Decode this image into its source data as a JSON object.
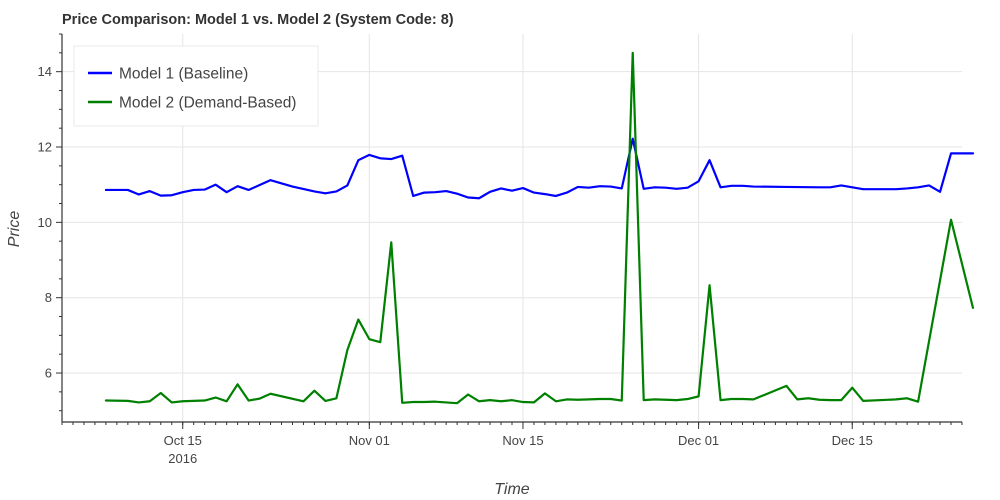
{
  "chart_data": {
    "type": "line",
    "title": "Price Comparison: Model 1 vs. Model 2 (System Code: 8)",
    "xlabel": "Time",
    "ylabel": "Price",
    "xlim": [
      "2016-10-04",
      "2016-12-25"
    ],
    "ylim": [
      4.7,
      15.0
    ],
    "grid": true,
    "legend_position": "top-left",
    "x_ticks": [
      {
        "date": "2016-10-15",
        "label": "Oct 15",
        "sublabel": "2016"
      },
      {
        "date": "2016-11-01",
        "label": "Nov 01",
        "sublabel": ""
      },
      {
        "date": "2016-11-15",
        "label": "Nov 15",
        "sublabel": ""
      },
      {
        "date": "2016-12-01",
        "label": "Dec 01",
        "sublabel": ""
      },
      {
        "date": "2016-12-15",
        "label": "Dec 15",
        "sublabel": ""
      }
    ],
    "y_ticks": [
      6,
      8,
      10,
      12,
      14
    ],
    "series": [
      {
        "name": "Model 1 (Baseline)",
        "color": "#0000ff",
        "points": [
          [
            "2016-10-08 00:00",
            10.86
          ],
          [
            "2016-10-10 00:00",
            10.86
          ],
          [
            "2016-10-11 00:00",
            10.74
          ],
          [
            "2016-10-12 00:00",
            10.83
          ],
          [
            "2016-10-13 00:00",
            10.71
          ],
          [
            "2016-10-14 00:00",
            10.72
          ],
          [
            "2016-10-15 00:00",
            10.8
          ],
          [
            "2016-10-16 00:00",
            10.86
          ],
          [
            "2016-10-17 00:00",
            10.87
          ],
          [
            "2016-10-18 00:00",
            11.0
          ],
          [
            "2016-10-19 00:00",
            10.8
          ],
          [
            "2016-10-20 00:00",
            10.96
          ],
          [
            "2016-10-21 00:00",
            10.86
          ],
          [
            "2016-10-23 00:00",
            11.12
          ],
          [
            "2016-10-25 00:00",
            10.95
          ],
          [
            "2016-10-27 00:00",
            10.82
          ],
          [
            "2016-10-28 00:00",
            10.77
          ],
          [
            "2016-10-29 00:00",
            10.82
          ],
          [
            "2016-10-30 00:00",
            10.98
          ],
          [
            "2016-10-31 00:00",
            11.65
          ],
          [
            "2016-11-01 00:00",
            11.79
          ],
          [
            "2016-11-02 00:00",
            11.7
          ],
          [
            "2016-11-03 00:00",
            11.68
          ],
          [
            "2016-11-04 00:00",
            11.77
          ],
          [
            "2016-11-05 00:00",
            10.7
          ],
          [
            "2016-11-06 00:00",
            10.79
          ],
          [
            "2016-11-07 00:00",
            10.8
          ],
          [
            "2016-11-08 00:00",
            10.83
          ],
          [
            "2016-11-09 00:00",
            10.76
          ],
          [
            "2016-11-10 00:00",
            10.66
          ],
          [
            "2016-11-11 00:00",
            10.64
          ],
          [
            "2016-11-12 00:00",
            10.81
          ],
          [
            "2016-11-13 00:00",
            10.9
          ],
          [
            "2016-11-14 00:00",
            10.84
          ],
          [
            "2016-11-15 00:00",
            10.91
          ],
          [
            "2016-11-16 00:00",
            10.79
          ],
          [
            "2016-11-17 00:00",
            10.75
          ],
          [
            "2016-11-18 00:00",
            10.7
          ],
          [
            "2016-11-19 00:00",
            10.79
          ],
          [
            "2016-11-20 00:00",
            10.94
          ],
          [
            "2016-11-21 00:00",
            10.92
          ],
          [
            "2016-11-22 00:00",
            10.96
          ],
          [
            "2016-11-23 00:00",
            10.95
          ],
          [
            "2016-11-24 00:00",
            10.9
          ],
          [
            "2016-11-25 00:00",
            12.22
          ],
          [
            "2016-11-26 00:00",
            10.89
          ],
          [
            "2016-11-27 00:00",
            10.93
          ],
          [
            "2016-11-28 00:00",
            10.92
          ],
          [
            "2016-11-29 00:00",
            10.89
          ],
          [
            "2016-11-30 00:00",
            10.92
          ],
          [
            "2016-12-01 00:00",
            11.09
          ],
          [
            "2016-12-02 00:00",
            11.65
          ],
          [
            "2016-12-03 00:00",
            10.93
          ],
          [
            "2016-12-04 00:00",
            10.97
          ],
          [
            "2016-12-05 00:00",
            10.97
          ],
          [
            "2016-12-06 00:00",
            10.95
          ],
          [
            "2016-12-09 00:00",
            10.94
          ],
          [
            "2016-12-12 00:00",
            10.93
          ],
          [
            "2016-12-13 00:00",
            10.93
          ],
          [
            "2016-12-14 00:00",
            10.98
          ],
          [
            "2016-12-15 00:00",
            10.93
          ],
          [
            "2016-12-16 00:00",
            10.88
          ],
          [
            "2016-12-19 00:00",
            10.88
          ],
          [
            "2016-12-20 00:00",
            10.9
          ],
          [
            "2016-12-21 00:00",
            10.93
          ],
          [
            "2016-12-22 00:00",
            10.98
          ],
          [
            "2016-12-23 00:00",
            10.81
          ],
          [
            "2016-12-24 00:00",
            11.83
          ],
          [
            "2016-12-26 00:00",
            11.83
          ]
        ]
      },
      {
        "name": "Model 2 (Demand-Based)",
        "color": "#008000",
        "points": [
          [
            "2016-10-08 00:00",
            5.27
          ],
          [
            "2016-10-10 00:00",
            5.26
          ],
          [
            "2016-10-11 00:00",
            5.22
          ],
          [
            "2016-10-12 00:00",
            5.25
          ],
          [
            "2016-10-13 00:00",
            5.47
          ],
          [
            "2016-10-14 00:00",
            5.22
          ],
          [
            "2016-10-15 00:00",
            5.25
          ],
          [
            "2016-10-16 00:00",
            5.26
          ],
          [
            "2016-10-17 00:00",
            5.27
          ],
          [
            "2016-10-18 00:00",
            5.35
          ],
          [
            "2016-10-19 00:00",
            5.25
          ],
          [
            "2016-10-20 00:00",
            5.7
          ],
          [
            "2016-10-21 00:00",
            5.27
          ],
          [
            "2016-10-22 00:00",
            5.32
          ],
          [
            "2016-10-23 00:00",
            5.45
          ],
          [
            "2016-10-26 00:00",
            5.25
          ],
          [
            "2016-10-27 00:00",
            5.53
          ],
          [
            "2016-10-28 00:00",
            5.26
          ],
          [
            "2016-10-29 00:00",
            5.33
          ],
          [
            "2016-10-30 00:00",
            6.61
          ],
          [
            "2016-10-31 00:00",
            7.42
          ],
          [
            "2016-11-01 00:00",
            6.9
          ],
          [
            "2016-11-02 00:00",
            6.82
          ],
          [
            "2016-11-03 00:00",
            9.47
          ],
          [
            "2016-11-04 00:00",
            5.21
          ],
          [
            "2016-11-05 00:00",
            5.23
          ],
          [
            "2016-11-06 00:00",
            5.23
          ],
          [
            "2016-11-07 00:00",
            5.24
          ],
          [
            "2016-11-08 00:00",
            5.22
          ],
          [
            "2016-11-09 00:00",
            5.2
          ],
          [
            "2016-11-10 00:00",
            5.43
          ],
          [
            "2016-11-11 00:00",
            5.25
          ],
          [
            "2016-11-12 00:00",
            5.28
          ],
          [
            "2016-11-13 00:00",
            5.25
          ],
          [
            "2016-11-14 00:00",
            5.28
          ],
          [
            "2016-11-15 00:00",
            5.23
          ],
          [
            "2016-11-16 00:00",
            5.22
          ],
          [
            "2016-11-17 00:00",
            5.46
          ],
          [
            "2016-11-18 00:00",
            5.25
          ],
          [
            "2016-11-19 00:00",
            5.3
          ],
          [
            "2016-11-20 00:00",
            5.29
          ],
          [
            "2016-11-21 00:00",
            5.3
          ],
          [
            "2016-11-22 00:00",
            5.31
          ],
          [
            "2016-11-23 00:00",
            5.31
          ],
          [
            "2016-11-24 00:00",
            5.27
          ],
          [
            "2016-11-25 00:00",
            14.5
          ],
          [
            "2016-11-26 00:00",
            5.28
          ],
          [
            "2016-11-27 00:00",
            5.3
          ],
          [
            "2016-11-28 00:00",
            5.29
          ],
          [
            "2016-11-29 00:00",
            5.28
          ],
          [
            "2016-11-30 00:00",
            5.31
          ],
          [
            "2016-12-01 00:00",
            5.38
          ],
          [
            "2016-12-02 00:00",
            8.33
          ],
          [
            "2016-12-03 00:00",
            5.28
          ],
          [
            "2016-12-04 00:00",
            5.31
          ],
          [
            "2016-12-05 00:00",
            5.31
          ],
          [
            "2016-12-06 00:00",
            5.3
          ],
          [
            "2016-12-09 00:00",
            5.66
          ],
          [
            "2016-12-10 00:00",
            5.3
          ],
          [
            "2016-12-11 00:00",
            5.33
          ],
          [
            "2016-12-12 00:00",
            5.29
          ],
          [
            "2016-12-13 00:00",
            5.28
          ],
          [
            "2016-12-14 00:00",
            5.28
          ],
          [
            "2016-12-15 00:00",
            5.61
          ],
          [
            "2016-12-16 00:00",
            5.26
          ],
          [
            "2016-12-19 00:00",
            5.3
          ],
          [
            "2016-12-20 00:00",
            5.33
          ],
          [
            "2016-12-21 00:00",
            5.24
          ],
          [
            "2016-12-24 00:00",
            10.07
          ],
          [
            "2016-12-26 00:00",
            7.73
          ]
        ]
      }
    ]
  }
}
